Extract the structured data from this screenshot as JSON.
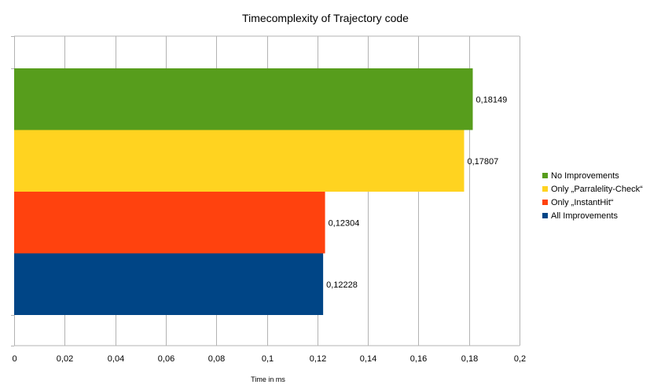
{
  "chart_data": {
    "type": "bar",
    "orientation": "horizontal",
    "title": "Timecomplexity of Trajectory code",
    "xlabel": "Time in ms",
    "ylabel": "",
    "xlim": [
      0,
      0.2
    ],
    "xticks": [
      0,
      0.02,
      0.04,
      0.06,
      0.08,
      0.1,
      0.12,
      0.14,
      0.16,
      0.18,
      0.2
    ],
    "xtick_labels": [
      "0",
      "0,02",
      "0,04",
      "0,06",
      "0,08",
      "0,1",
      "0,12",
      "0,14",
      "0,16",
      "0,18",
      "0,2"
    ],
    "grid": "vertical",
    "legend_position": "right",
    "series": [
      {
        "name": "No Improvements",
        "value": 0.18149,
        "label": "0,18149",
        "color": "#579d1c"
      },
      {
        "name": "Only „Parralelity-Check“",
        "value": 0.17807,
        "label": "0,17807",
        "color": "#ffd320"
      },
      {
        "name": "Only „InstantHit“",
        "value": 0.12304,
        "label": "0,12304",
        "color": "#ff420e"
      },
      {
        "name": "All Improvements",
        "value": 0.12228,
        "label": "0,12228",
        "color": "#004586"
      }
    ]
  }
}
